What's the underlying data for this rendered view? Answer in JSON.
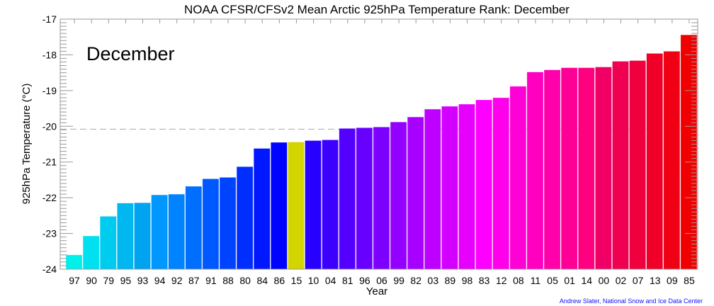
{
  "chart_data": {
    "type": "bar",
    "title": "NOAA CFSR/CFSv2 Mean Arctic 925hPa Temperature Rank: December",
    "annotation": "December",
    "xlabel": "Year",
    "ylabel": "925hPa Temperature (°C)",
    "credit": "Andrew Slater, National Snow and Ice Data Center",
    "ylim": [
      -24,
      -17
    ],
    "yticks": [
      "-24",
      "-23",
      "-22",
      "-21",
      "-20",
      "-19",
      "-18",
      "-17"
    ],
    "mean_line": -20.08,
    "highlight_category": "15",
    "highlight_color": "#d4d400",
    "categories": [
      "97",
      "90",
      "79",
      "95",
      "93",
      "94",
      "92",
      "87",
      "91",
      "88",
      "80",
      "84",
      "86",
      "15",
      "10",
      "04",
      "81",
      "96",
      "06",
      "99",
      "82",
      "03",
      "89",
      "98",
      "83",
      "12",
      "08",
      "11",
      "05",
      "01",
      "14",
      "00",
      "02",
      "07",
      "13",
      "09",
      "85"
    ],
    "values": [
      -23.6,
      -23.07,
      -22.52,
      -22.15,
      -22.14,
      -21.92,
      -21.9,
      -21.68,
      -21.47,
      -21.43,
      -21.13,
      -20.62,
      -20.45,
      -20.44,
      -20.4,
      -20.38,
      -20.06,
      -20.04,
      -20.02,
      -19.88,
      -19.74,
      -19.52,
      -19.44,
      -19.38,
      -19.26,
      -19.2,
      -18.88,
      -18.48,
      -18.42,
      -18.36,
      -18.36,
      -18.34,
      -18.18,
      -18.16,
      -17.96,
      -17.9,
      -17.44
    ],
    "colors": {
      "start": "#00e8e8",
      "mid": "#1800ff",
      "magenta": "#ff00ff",
      "end": "#ff0010"
    }
  }
}
